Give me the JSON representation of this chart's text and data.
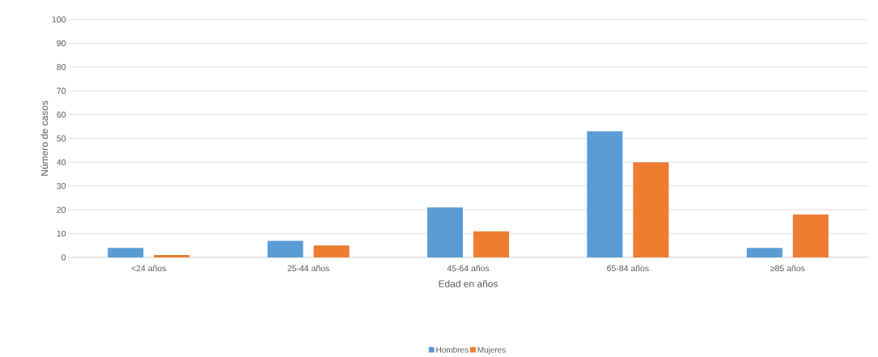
{
  "chart_data": {
    "type": "bar",
    "xlabel": "Edad en años",
    "ylabel": "Número de casos",
    "categories": [
      "<24 años",
      "25-44 años",
      "45-64 años",
      "65-84 años",
      "≥85 años"
    ],
    "series": [
      {
        "name": "Hombres",
        "color": "#5b9bd5",
        "values": [
          4,
          7,
          21,
          53,
          4
        ]
      },
      {
        "name": "Mujeres",
        "color": "#ed7d31",
        "values": [
          1,
          5,
          11,
          40,
          18
        ]
      }
    ],
    "ylim": [
      0,
      100
    ],
    "yticks": [
      0,
      10,
      20,
      30,
      40,
      50,
      60,
      70,
      80,
      90,
      100
    ],
    "grid": "y",
    "legend": "bottom"
  }
}
